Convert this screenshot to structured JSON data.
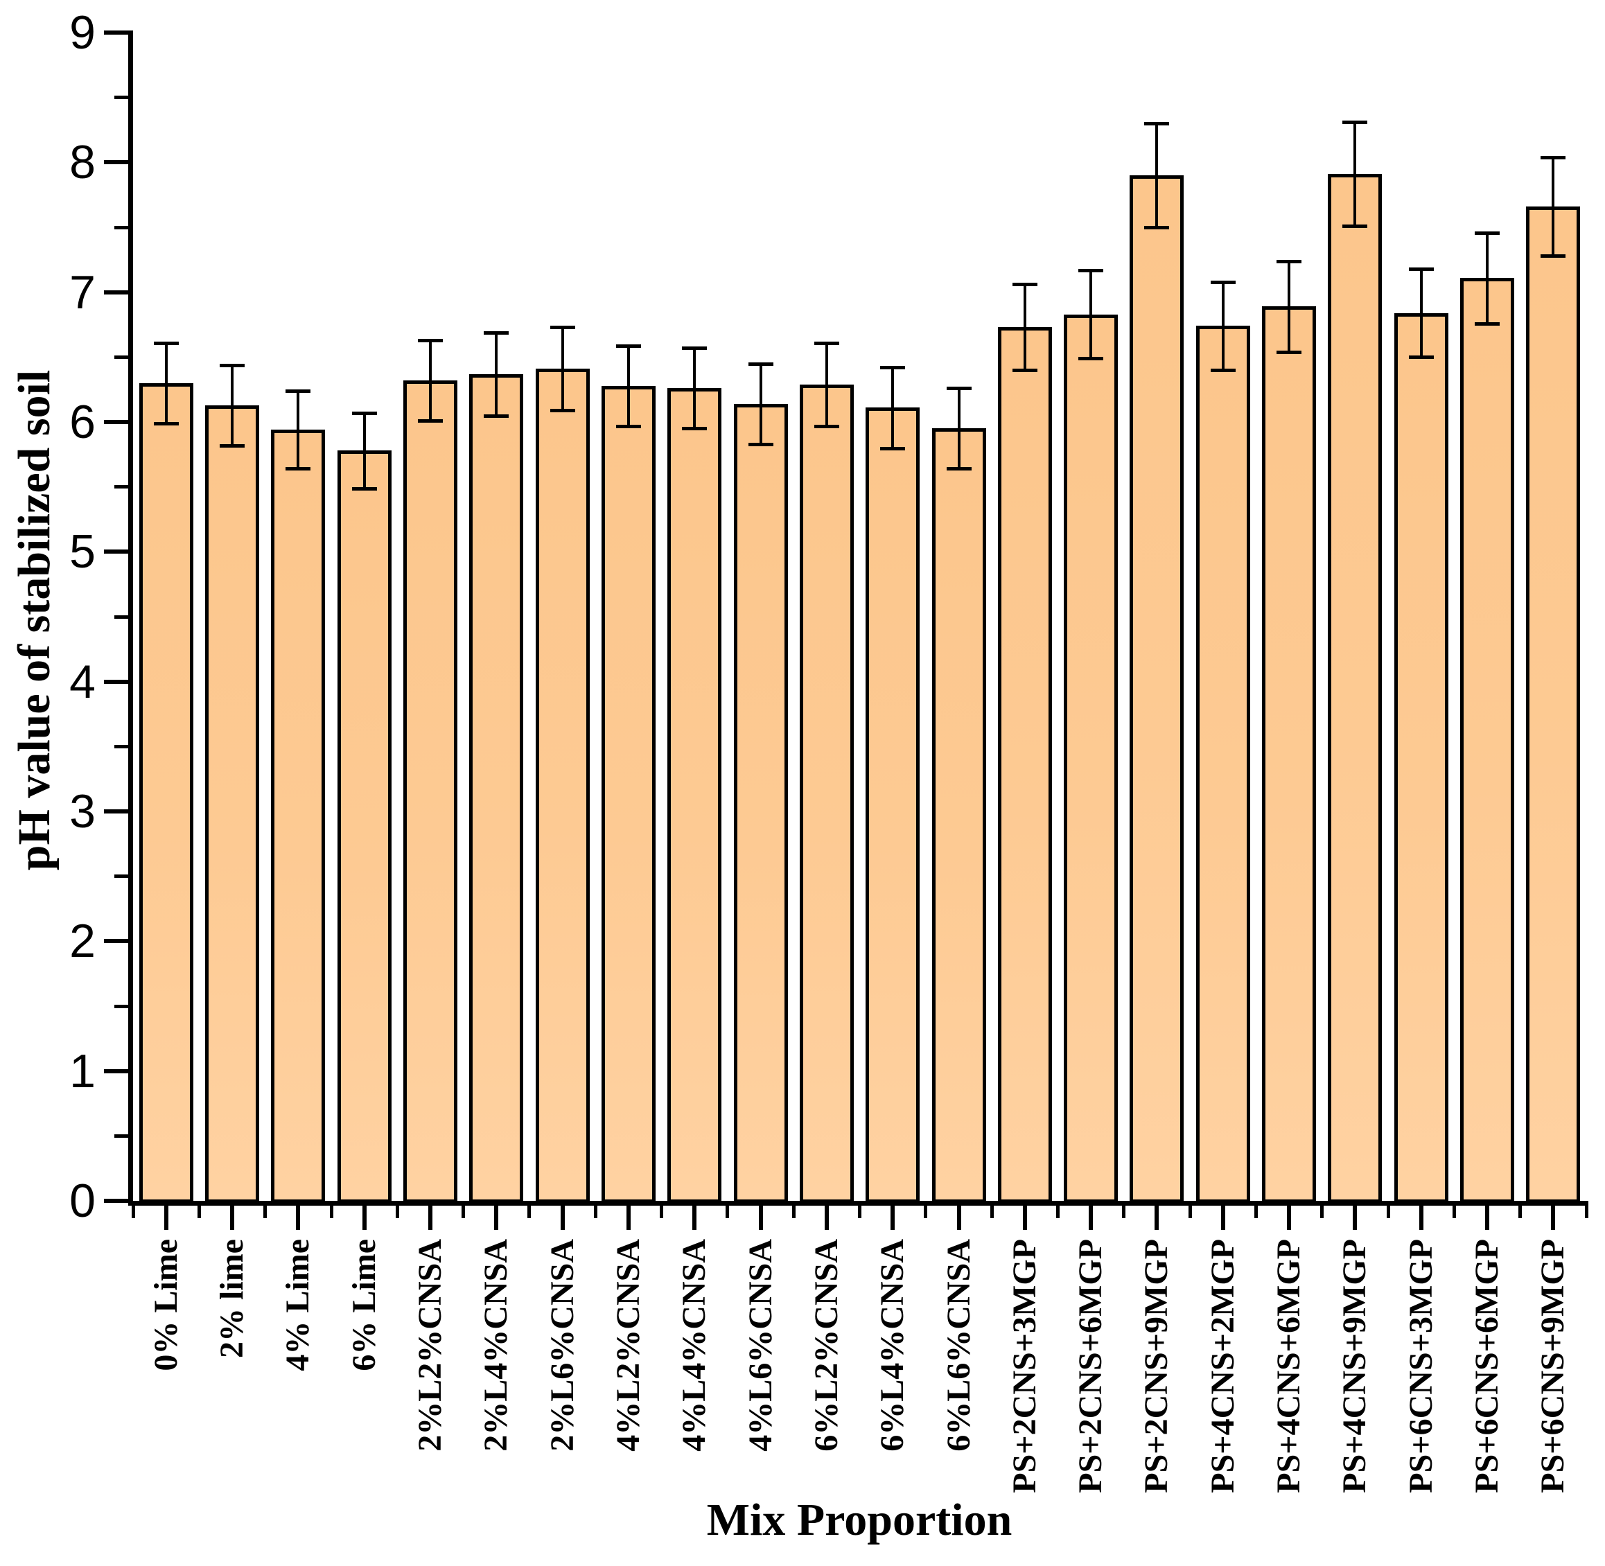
{
  "chart_data": {
    "type": "bar",
    "title": "",
    "xlabel": "Mix Proportion",
    "ylabel": "pH value of stabilized soil",
    "ylim": [
      0,
      9
    ],
    "ytick_step": 1,
    "yminor_step": 0.5,
    "grid": false,
    "legend": null,
    "bar_fill_color": "#fdc992",
    "bar_edge_color": "#000000",
    "categories": [
      "0% Lime",
      "2% lime",
      "4% Lime",
      "6% Lime",
      "2%L2%CNSA",
      "2%L4%CNSA",
      "2%L6%CNSA",
      "4%L2%CNSA",
      "4%L4%CNSA",
      "4%L6%CNSA",
      "6%L2%CNSA",
      "6%L4%CNSA",
      "6%L6%CNSA",
      "PS+2CNS+3MGP",
      "PS+2CNS+6MGP",
      "PS+2CNS+9MGP",
      "PS+4CNS+2MGP",
      "PS+4CNS+6MGP",
      "PS+4CNS+9MGP",
      "PS+6CNS+3MGP",
      "PS+6CNS+6MGP",
      "PS+6CNS+9MGP"
    ],
    "values": [
      6.3,
      6.13,
      5.94,
      5.78,
      6.32,
      6.37,
      6.41,
      6.28,
      6.26,
      6.14,
      6.29,
      6.11,
      5.95,
      6.73,
      6.83,
      7.9,
      6.74,
      6.89,
      7.91,
      6.84,
      7.11,
      7.66
    ],
    "errors": [
      0.31,
      0.31,
      0.3,
      0.29,
      0.31,
      0.32,
      0.32,
      0.31,
      0.31,
      0.31,
      0.32,
      0.31,
      0.31,
      0.33,
      0.34,
      0.4,
      0.34,
      0.35,
      0.4,
      0.34,
      0.35,
      0.38
    ],
    "ytick_labels": [
      "0",
      "1",
      "2",
      "3",
      "4",
      "5",
      "6",
      "7",
      "8",
      "9"
    ]
  }
}
